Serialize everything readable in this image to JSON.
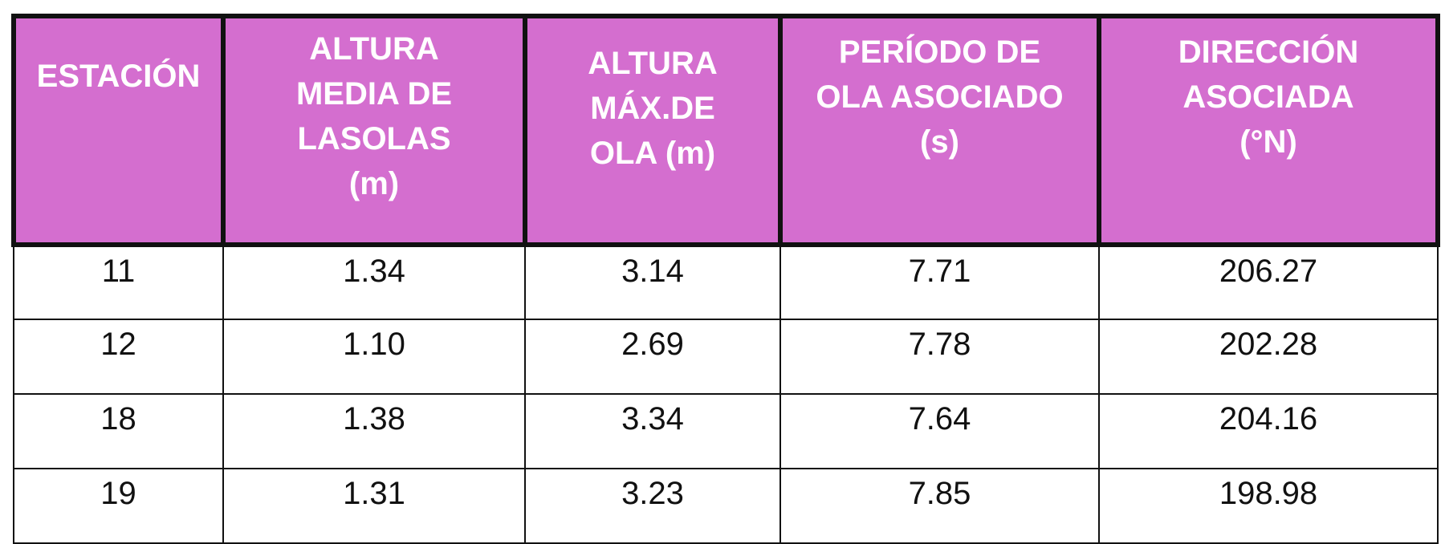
{
  "table": {
    "headers": [
      "ESTACIÓN",
      "ALTURA\nMEDIA DE\nLASOLAS\n(m)",
      "ALTURA\nMÁX.DE\nOLA (m)",
      "PERÍODO DE\nOLA ASOCIADO\n(s)",
      "DIRECCIÓN\nASOCIADA\n(°N)"
    ],
    "rows": [
      [
        "11",
        "1.34",
        "3.14",
        "7.71",
        "206.27"
      ],
      [
        "12",
        "1.10",
        "2.69",
        "7.78",
        "202.28"
      ],
      [
        "18",
        "1.38",
        "3.34",
        "7.64",
        "204.16"
      ],
      [
        "19",
        "1.31",
        "3.23",
        "7.85",
        "198.98"
      ]
    ]
  },
  "colors": {
    "header_bg": "#d46ecf",
    "header_text": "#ffffff",
    "border": "#111111"
  }
}
